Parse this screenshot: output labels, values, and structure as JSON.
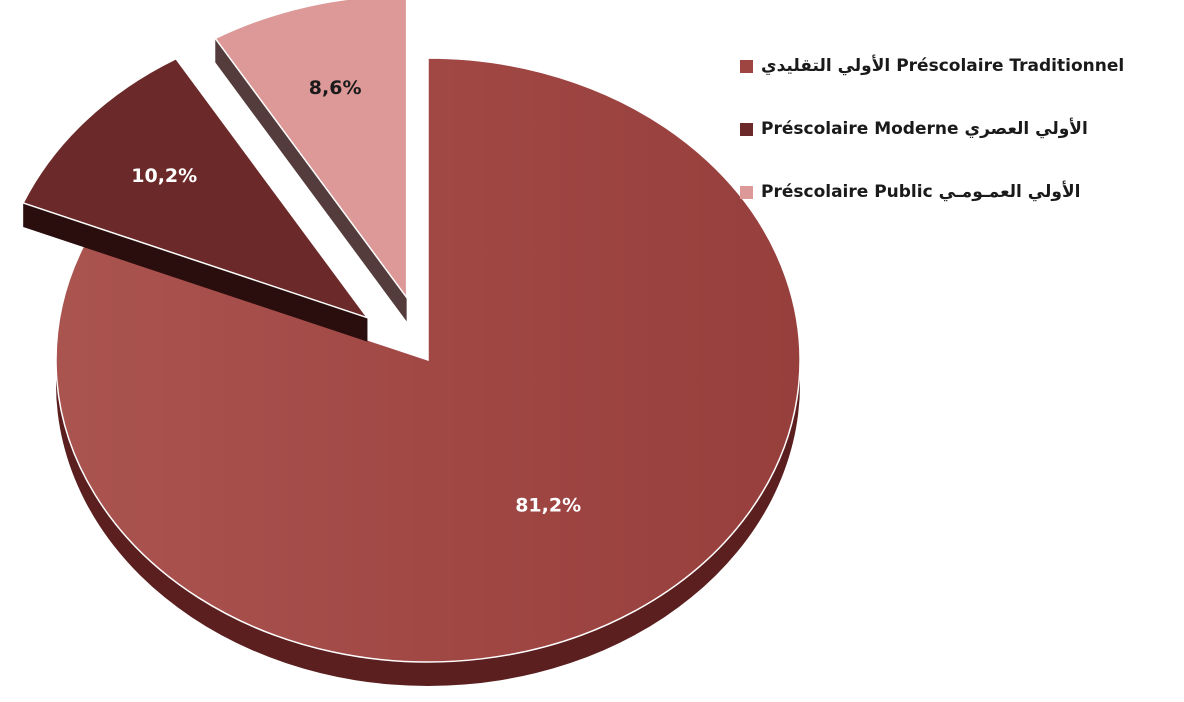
{
  "chart_data": {
    "type": "pie",
    "title": "",
    "slices": [
      {
        "name": "Préscolaire Traditionnel الأولي التقليدي",
        "label_fr": "Préscolaire Traditionnel",
        "label_ar": "الأولي التقليدي",
        "value": 81.2,
        "value_label": "81,2%",
        "color": "#9e4541",
        "label_color": "#ffffff"
      },
      {
        "name": "Préscolaire Moderne الأولي العصري",
        "label_fr": "Préscolaire Moderne",
        "label_ar": "الأولي العصري",
        "value": 10.2,
        "value_label": "10,2%",
        "color": "#6b2a29",
        "label_color": "#ffffff"
      },
      {
        "name": "Préscolaire Public الأولي العمومي",
        "label_fr": "Préscolaire Public",
        "label_ar": "الأولي العمـومـي",
        "value": 8.6,
        "value_label": "8,6%",
        "color": "#dc9998",
        "label_color": "#1a1a1a"
      }
    ],
    "legend_position": "top-right",
    "style": "3d-exploded"
  }
}
